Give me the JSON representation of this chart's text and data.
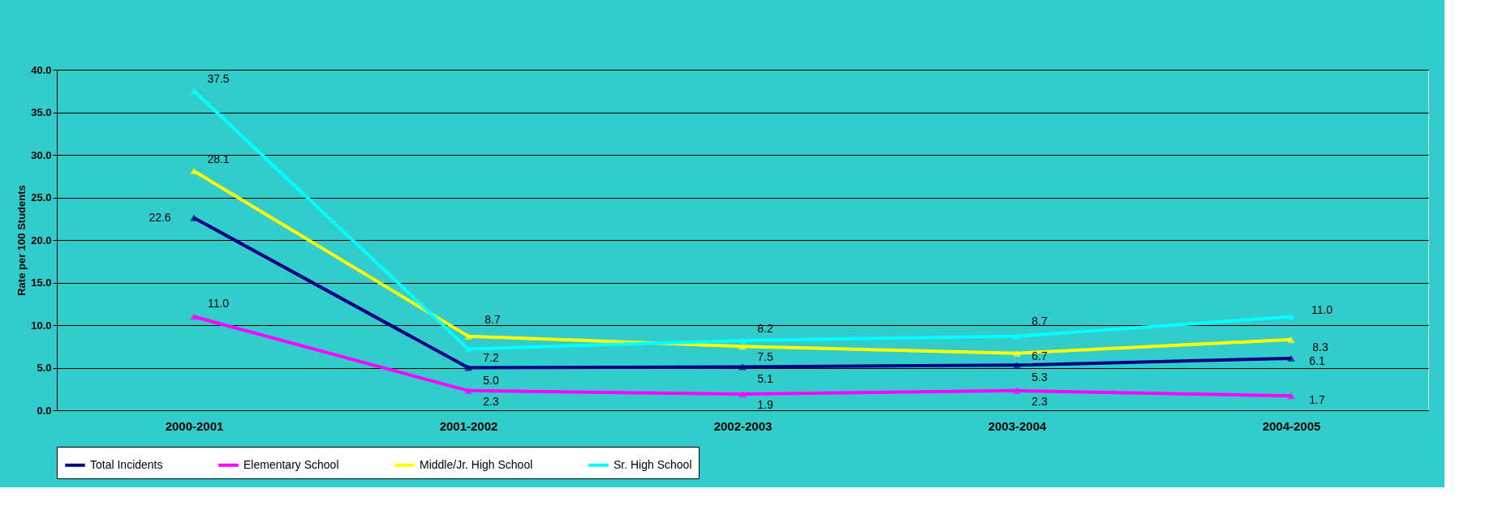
{
  "chart_data": {
    "type": "line",
    "ylabel": "Rate per 100 Students",
    "categories": [
      "2000-2001",
      "2001-2002",
      "2002-2003",
      "2003-2004",
      "2004-2005"
    ],
    "series": [
      {
        "name": "Total Incidents",
        "color": "#000080",
        "values": [
          22.6,
          5.0,
          5.1,
          5.3,
          6.1
        ],
        "value_labels": [
          "22.6",
          "5.0",
          "5.1",
          "5.3",
          "6.1"
        ]
      },
      {
        "name": "Elementary School",
        "color": "#ff00ff",
        "values": [
          11.0,
          2.3,
          1.9,
          2.3,
          1.7
        ],
        "value_labels": [
          "11.0",
          "2.3",
          "1.9",
          "2.3",
          "1.7"
        ]
      },
      {
        "name": "Middle/Jr. High School",
        "color": "#ffff00",
        "values": [
          28.1,
          8.7,
          7.5,
          6.7,
          8.3
        ],
        "value_labels": [
          "28.1",
          "8.7",
          "7.5",
          "6.7",
          "8.3"
        ]
      },
      {
        "name": "Sr. High School",
        "color": "#00ffff",
        "values": [
          37.5,
          7.2,
          8.2,
          8.7,
          11.0
        ],
        "value_labels": [
          "37.5",
          "7.2",
          "8.2",
          "8.7",
          "11.0"
        ]
      }
    ],
    "ylim": [
      0,
      40
    ],
    "yticks": [
      {
        "value": 0,
        "label": "0.0"
      },
      {
        "value": 5,
        "label": "5.0"
      },
      {
        "value": 10,
        "label": "10.0"
      },
      {
        "value": 15,
        "label": "15.0"
      },
      {
        "value": 20,
        "label": "20.0"
      },
      {
        "value": 25,
        "label": "25.0"
      },
      {
        "value": 30,
        "label": "30.0"
      },
      {
        "value": 35,
        "label": "35.0"
      },
      {
        "value": 40,
        "label": "40.0"
      }
    ],
    "grid": "y",
    "legend": "bottom",
    "marker": "triangle",
    "line_style": "solid"
  }
}
